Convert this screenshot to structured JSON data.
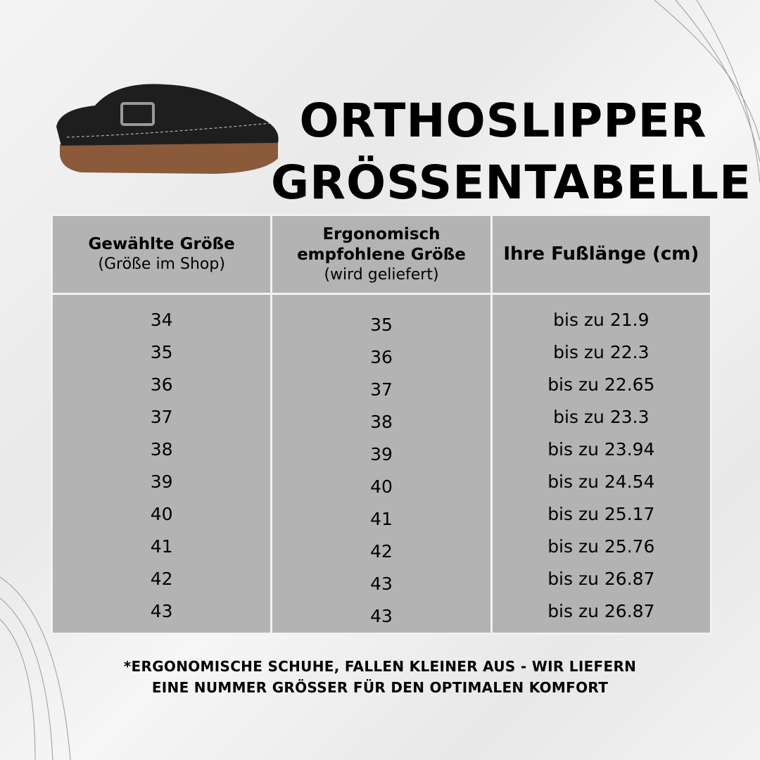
{
  "title": {
    "line1": "ORTHOSLIPPER",
    "line2": "GRÖSSENTABELLE"
  },
  "table": {
    "headers": [
      {
        "bold": "Gewählte Größe",
        "sub": "(Größe im Shop)"
      },
      {
        "bold": "Ergonomisch empfohlene Größe",
        "sub": "(wird geliefert)"
      },
      {
        "bold": "Ihre Fußlänge (cm)",
        "sub": ""
      }
    ],
    "chosen": [
      "34",
      "35",
      "36",
      "37",
      "38",
      "39",
      "40",
      "41",
      "42",
      "43"
    ],
    "recommended": [
      "35",
      "36",
      "37",
      "38",
      "39",
      "40",
      "41",
      "42",
      "43",
      "43"
    ],
    "foot_length": [
      "bis zu 21.9",
      "bis zu 22.3",
      "bis zu 22.65",
      "bis zu 23.3",
      "bis zu 23.94",
      "bis zu 24.54",
      "bis zu 25.17",
      "bis zu 25.76",
      "bis zu 26.87",
      "bis zu 26.87"
    ]
  },
  "note": {
    "line1": "*ERGONOMISCHE SCHUHE, FALLEN KLEINER AUS - WIR LIEFERN",
    "line2": "EINE NUMMER GRÖSSER FÜR DEN OPTIMALEN KOMFORT"
  },
  "colors": {
    "cell": "#b3b3b3",
    "background": "#efefef"
  }
}
